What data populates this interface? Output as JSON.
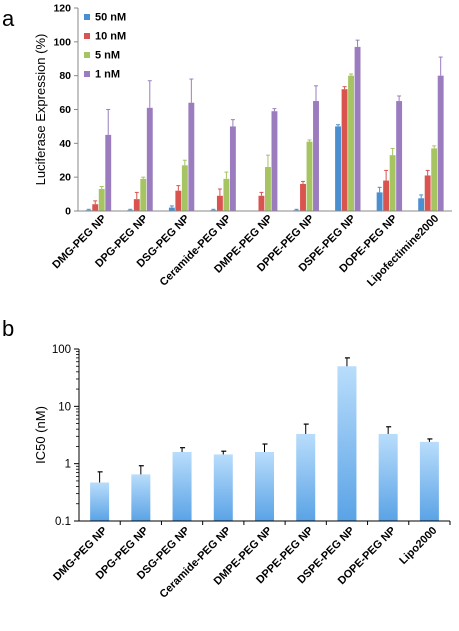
{
  "panels": {
    "a": {
      "letter": "a"
    },
    "b": {
      "letter": "b"
    }
  },
  "chart_data": [
    {
      "type": "bar",
      "categories": [
        "DMG-PEG NP",
        "DPG-PEG NP",
        "DSG-PEG NP",
        "Ceramide-PEG NP",
        "DMPE-PEG NP",
        "DPPE-PEG NP",
        "DSPE-PEG NP",
        "DOPE-PEG NP",
        "Lipofectimine2000"
      ],
      "ylabel": "Luciferase Expression (%)",
      "xlabel": "",
      "ylim": [
        0,
        120
      ],
      "yticks": [
        0,
        20,
        40,
        60,
        80,
        100,
        120
      ],
      "legend_position": "top-left",
      "series": [
        {
          "name": "50 nM",
          "color": "#4a8fd0",
          "values": [
            0.5,
            0.5,
            2,
            0.5,
            0,
            0.5,
            50,
            11,
            7.5
          ],
          "errors": [
            0.5,
            0.5,
            1,
            0.5,
            0,
            0.5,
            1,
            3,
            2
          ]
        },
        {
          "name": "10 nM",
          "color": "#d9534f",
          "values": [
            4,
            7,
            12,
            9,
            9,
            16,
            72,
            18,
            21
          ],
          "errors": [
            2,
            4,
            3,
            4,
            2,
            1.5,
            1.5,
            6,
            3
          ]
        },
        {
          "name": "5 nM",
          "color": "#a6c461",
          "values": [
            13,
            19,
            27,
            19,
            26,
            41,
            80,
            33,
            37
          ],
          "errors": [
            1.5,
            1,
            3,
            4,
            7,
            1,
            1,
            4,
            1.5
          ]
        },
        {
          "name": "1 nM",
          "color": "#9b7dbf",
          "values": [
            45,
            61,
            64,
            50,
            59,
            65,
            97,
            65,
            80
          ],
          "errors": [
            15,
            16,
            14,
            4,
            1.5,
            9,
            4,
            3,
            11
          ]
        }
      ],
      "grid": false
    },
    {
      "type": "bar",
      "categories": [
        "DMG-PEG NP",
        "DPG-PEG NP",
        "DSG-PEG NP",
        "Ceramide-PEG NP",
        "DMPE-PEG NP",
        "DPPE-PEG NP",
        "DSPE-PEG NP",
        "DOPE-PEG NP",
        "Lipo2000"
      ],
      "ylabel": "IC50 (nM)",
      "xlabel": "",
      "yscale": "log",
      "ylim": [
        0.1,
        100
      ],
      "yticks": [
        "0.1",
        "1",
        "10",
        "100"
      ],
      "series": [
        {
          "color": "#6fb4ee",
          "values": [
            0.47,
            0.65,
            1.6,
            1.45,
            1.6,
            3.3,
            50,
            3.3,
            2.4
          ],
          "errors": [
            0.25,
            0.27,
            0.3,
            0.2,
            0.6,
            1.6,
            20,
            1.1,
            0.3
          ]
        }
      ],
      "grid": false
    }
  ]
}
